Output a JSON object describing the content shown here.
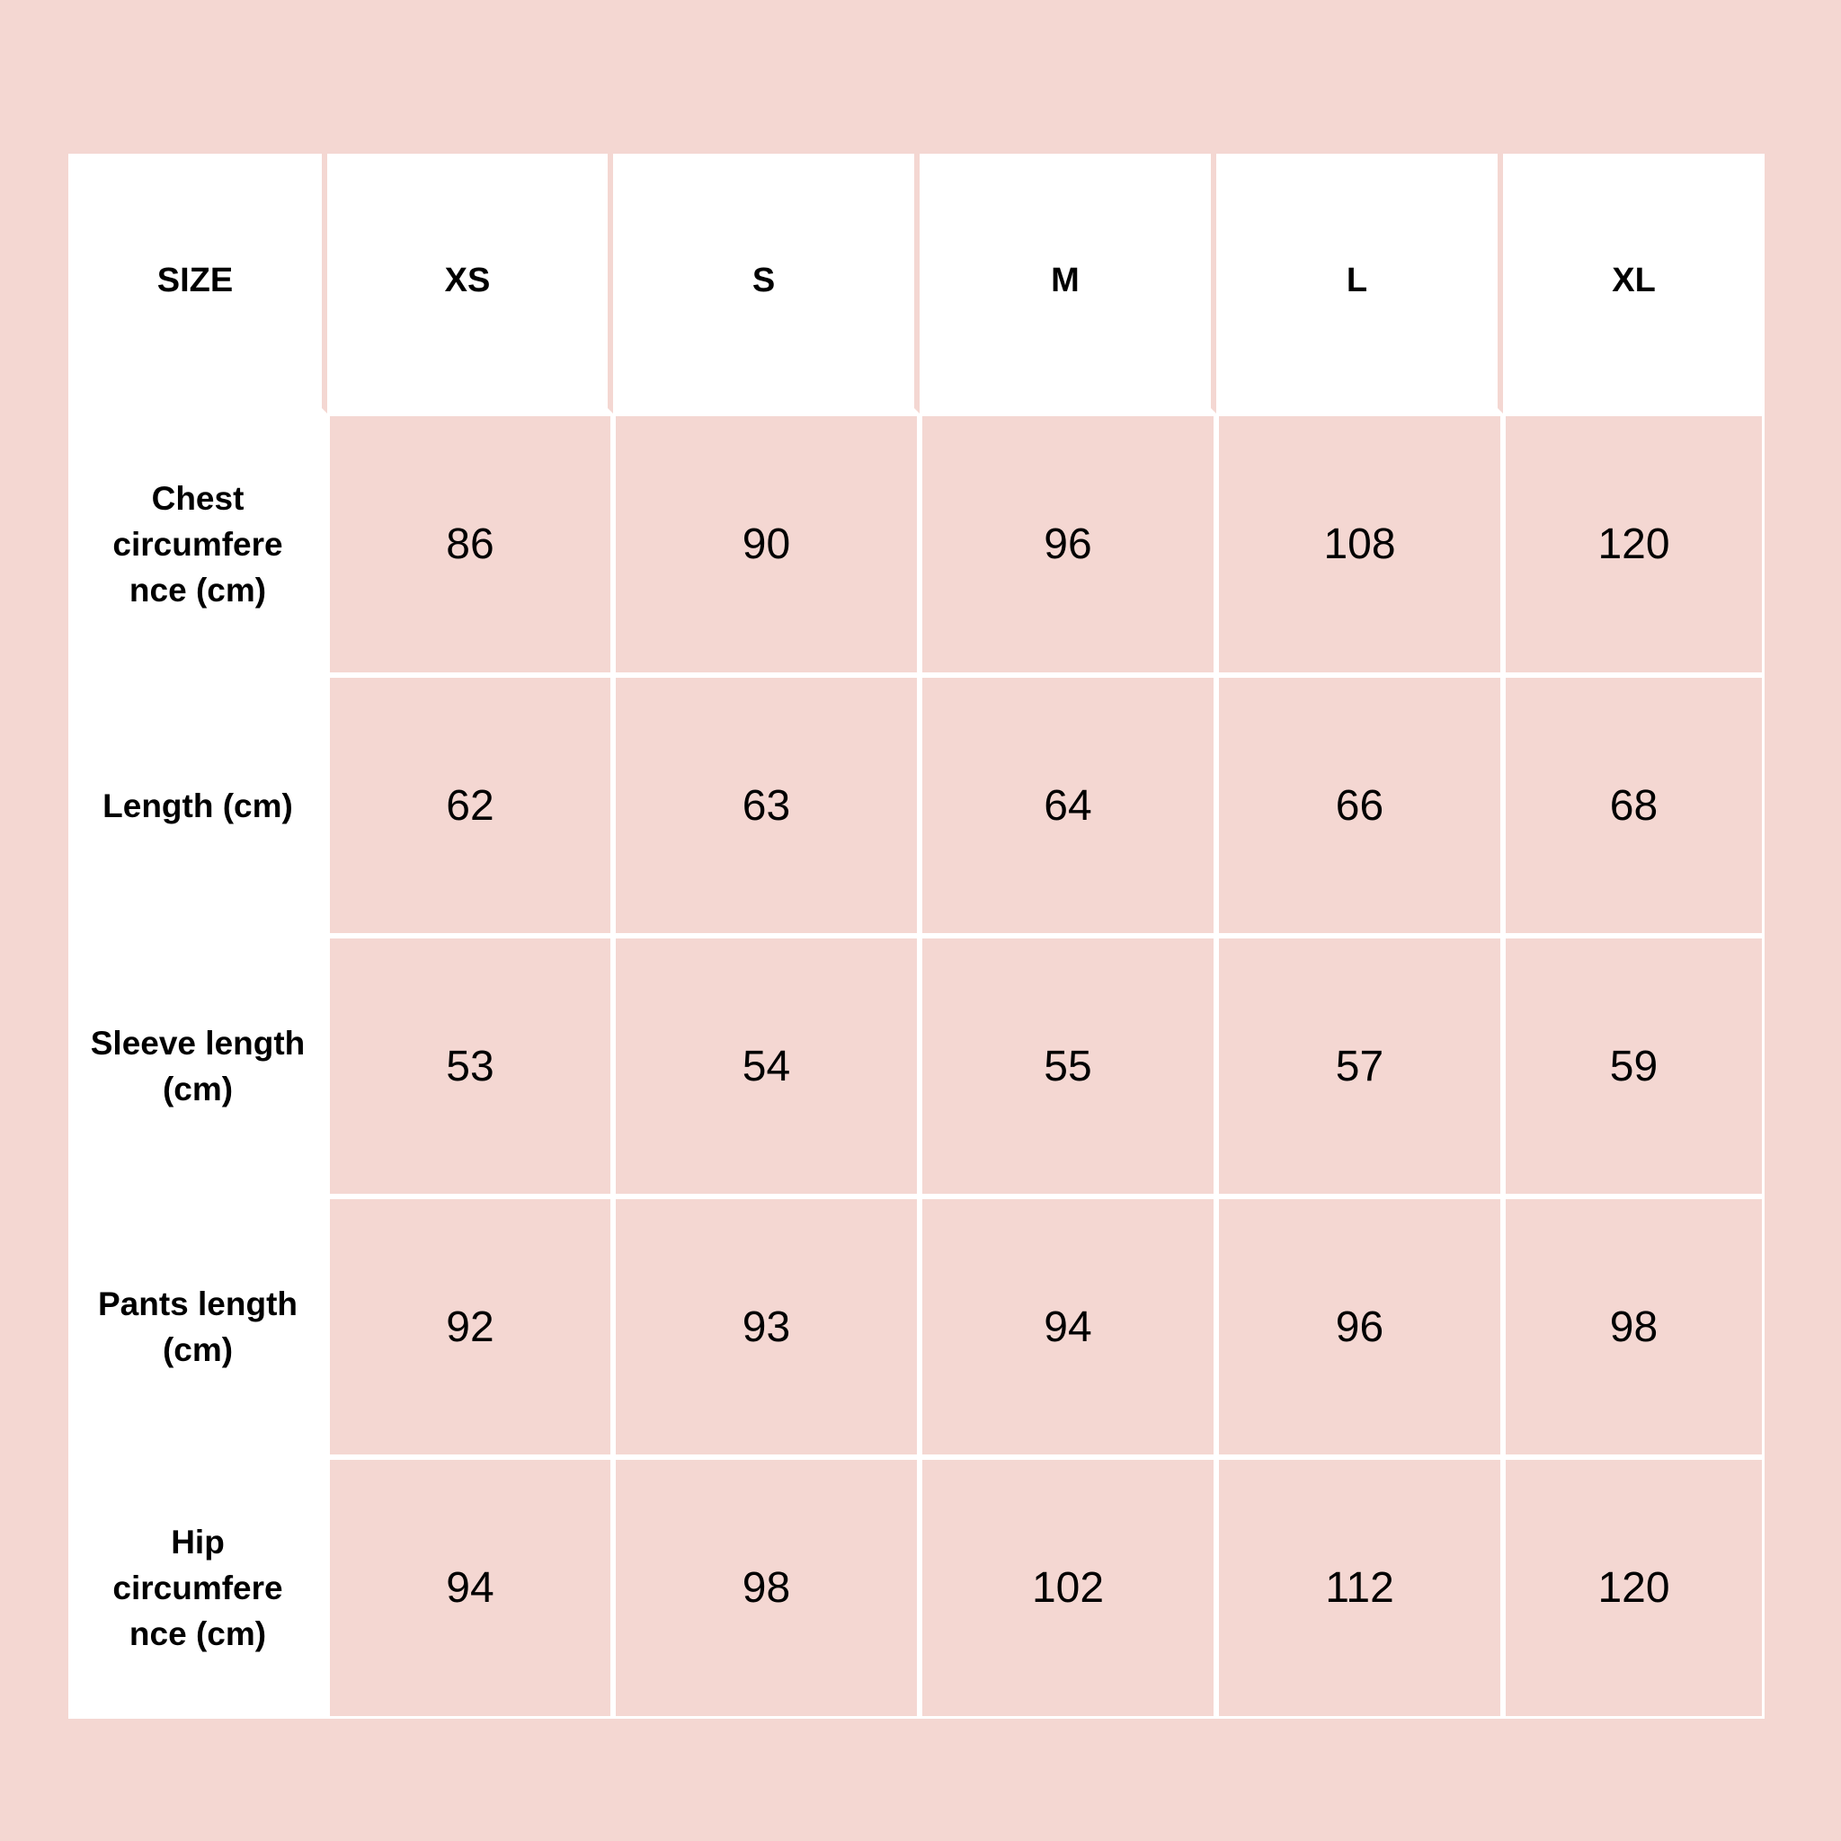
{
  "colors": {
    "background": "#f4d7d2",
    "header": "#ffffff",
    "cell": "#f4d7d2",
    "text": "#000000"
  },
  "table": {
    "headers": [
      "SIZE",
      "XS",
      "S",
      "M",
      "L",
      "XL"
    ],
    "rows": [
      {
        "label": "Chest circumfere nce (cm)",
        "values": [
          "86",
          "90",
          "96",
          "108",
          "120"
        ]
      },
      {
        "label": "Length (cm)",
        "values": [
          "62",
          "63",
          "64",
          "66",
          "68"
        ]
      },
      {
        "label": "Sleeve length (cm)",
        "values": [
          "53",
          "54",
          "55",
          "57",
          "59"
        ]
      },
      {
        "label": "Pants length (cm)",
        "values": [
          "92",
          "93",
          "94",
          "96",
          "98"
        ]
      },
      {
        "label": "Hip circumfere nce (cm)",
        "values": [
          "94",
          "98",
          "102",
          "112",
          "120"
        ]
      }
    ]
  }
}
